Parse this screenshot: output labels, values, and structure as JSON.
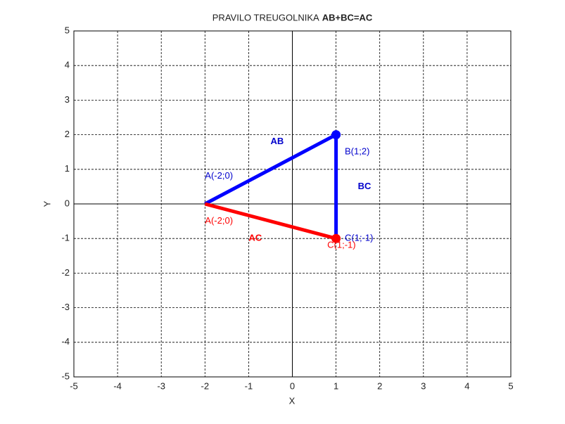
{
  "chart_data": {
    "type": "line",
    "title": "PRAVILO TREUGOLNIKA",
    "title_emphasis": "AB+BC=AC",
    "x_label": "X",
    "y_label": "Y",
    "xlim": [
      -5,
      5
    ],
    "ylim": [
      -5,
      5
    ],
    "xticks": [
      -5,
      -4,
      -3,
      -2,
      -1,
      0,
      1,
      2,
      3,
      4,
      5
    ],
    "yticks": [
      -5,
      -4,
      -3,
      -2,
      -1,
      0,
      1,
      2,
      3,
      4,
      5
    ],
    "grid": true,
    "zero_axes": true,
    "series": [
      {
        "color": "#0000ff",
        "x": [
          -2,
          1,
          1
        ],
        "values": [
          0,
          2,
          -1
        ],
        "marker_points": [
          1
        ]
      },
      {
        "color": "#ff0000",
        "x": [
          -2,
          1
        ],
        "values": [
          0,
          -1
        ],
        "marker_points": [
          1
        ]
      }
    ],
    "annotations": [
      {
        "text": "AB",
        "x": -0.5,
        "y": 1.8,
        "color": "#0000cc",
        "bold": true
      },
      {
        "text": "A(-2;0)",
        "x": -2,
        "y": 0.8,
        "color": "#0000cc",
        "bold": false
      },
      {
        "text": "B(1;2)",
        "x": 1.2,
        "y": 1.5,
        "color": "#0000cc",
        "bold": false
      },
      {
        "text": "BC",
        "x": 1.5,
        "y": 0.5,
        "color": "#0000cc",
        "bold": true
      },
      {
        "text": "A(-2;0)",
        "x": -2,
        "y": -0.5,
        "color": "#ff0000",
        "bold": false
      },
      {
        "text": "AC",
        "x": -1,
        "y": -1,
        "color": "#ff0000",
        "bold": true
      },
      {
        "text": "C(1;-1)",
        "x": 1.2,
        "y": -1,
        "color": "#0000cc",
        "bold": false
      },
      {
        "text": "C(1;-1)",
        "x": 0.8,
        "y": -1.2,
        "color": "#ff0000",
        "bold": false
      }
    ]
  }
}
